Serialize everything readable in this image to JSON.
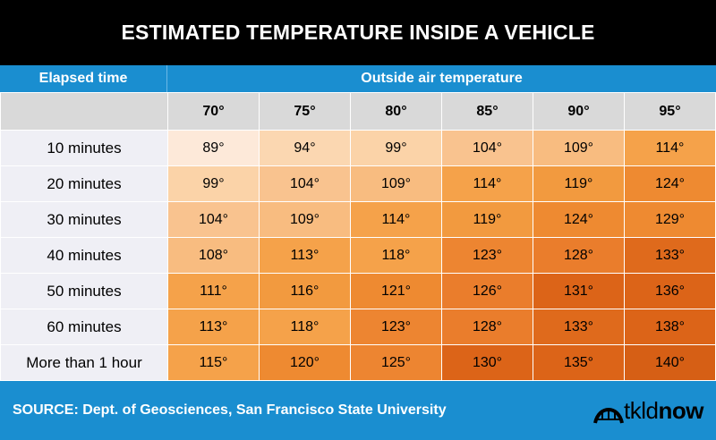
{
  "title": "ESTIMATED TEMPERATURE INSIDE A VEHICLE",
  "header": {
    "elapsed_label": "Elapsed time",
    "outside_label": "Outside air temperature"
  },
  "columns": [
    "70°",
    "75°",
    "80°",
    "85°",
    "90°",
    "95°"
  ],
  "rows": [
    {
      "label": "10  minutes",
      "values": [
        "89°",
        "94°",
        "99°",
        "104°",
        "109°",
        "114°"
      ]
    },
    {
      "label": "20 minutes",
      "values": [
        "99°",
        "104°",
        "109°",
        "114°",
        "119°",
        "124°"
      ]
    },
    {
      "label": "30 minutes",
      "values": [
        "104°",
        "109°",
        "114°",
        "119°",
        "124°",
        "129°"
      ]
    },
    {
      "label": "40 minutes",
      "values": [
        "108°",
        "113°",
        "118°",
        "123°",
        "128°",
        "133°"
      ]
    },
    {
      "label": "50 minutes",
      "values": [
        "111°",
        "116°",
        "121°",
        "126°",
        "131°",
        "136°"
      ]
    },
    {
      "label": "60 minutes",
      "values": [
        "113°",
        "118°",
        "123°",
        "128°",
        "133°",
        "138°"
      ]
    },
    {
      "label": "More than 1 hour",
      "values": [
        "115°",
        "120°",
        "125°",
        "130°",
        "135°",
        "140°"
      ]
    }
  ],
  "footer": {
    "source": "SOURCE:  Dept. of Geosciences, San Francisco State University",
    "logo_text_light": "tkld",
    "logo_text_bold": "now"
  },
  "colors": {
    "header_blue": "#1a8ed0",
    "scale": {
      "89": "#fde9d9",
      "94": "#fbd7b1",
      "99": "#fbd3a8",
      "104": "#f9c38f",
      "109": "#f8bc80",
      "114": "#f5a24a",
      "119": "#f29a3f",
      "124": "#ee8a31",
      "129": "#ee8a31",
      "108": "#f8bc80",
      "113": "#f5a24a",
      "118": "#f5a24a",
      "123": "#ed8531",
      "128": "#ea7d2c",
      "133": "#df6a1c",
      "111": "#f5a24a",
      "116": "#f29a3f",
      "121": "#ee8a31",
      "126": "#ea7d2c",
      "131": "#dc6418",
      "136": "#dc6418",
      "138": "#dc6418",
      "115": "#f5a24a",
      "120": "#ee8a31",
      "125": "#ed8531",
      "130": "#dc6418",
      "135": "#dc6418",
      "140": "#d65f15"
    }
  }
}
